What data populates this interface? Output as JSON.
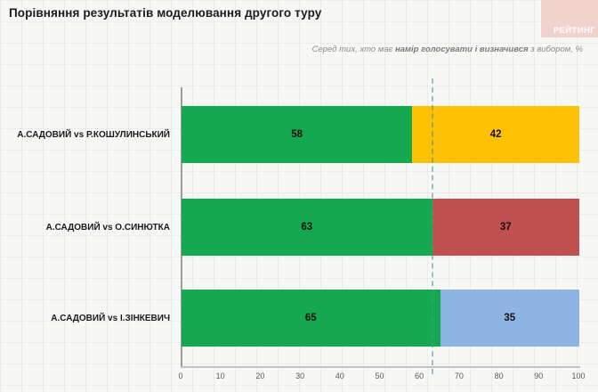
{
  "page": {
    "title": "Порівняння результатів моделювання другого туру"
  },
  "subtitle": {
    "prefix": "Серед тих, хто має ",
    "bold": "намір голосувати і визначився",
    "suffix": " з вибором, %"
  },
  "logo": {
    "text": "РЕЙТИНГ",
    "bg_color": "#f2d2cd",
    "text_color": "#ffffff"
  },
  "colors": {
    "green": "#14a850",
    "yellow": "#fec106",
    "red": "#c0504d",
    "blue": "#8eb4e3",
    "reference_line": "#4e968c"
  },
  "chart_data": {
    "type": "bar",
    "orientation": "horizontal_stacked",
    "title": "Порівняння результатів моделювання другого туру",
    "subtitle": "Серед тих, хто має намір голосувати і визначився з вибором, %",
    "categories": [
      "А.САДОВИЙ vs Р.КОШУЛИНСЬКИЙ",
      "А.САДОВИЙ vs О.СИНЮТКА",
      "А.САДОВИЙ vs І.ЗІНКЕВИЧ"
    ],
    "series": [
      {
        "name": "segment-left",
        "values": [
          58,
          63,
          65
        ],
        "colors": [
          "#14a850",
          "#14a850",
          "#14a850"
        ]
      },
      {
        "name": "segment-right",
        "values": [
          42,
          37,
          35
        ],
        "colors": [
          "#fec106",
          "#c0504d",
          "#8eb4e3"
        ]
      }
    ],
    "xlim": [
      0,
      100
    ],
    "x_ticks": [
      0,
      10,
      20,
      30,
      40,
      50,
      60,
      70,
      80,
      90,
      100
    ],
    "reference_line_x": 63,
    "grid": true,
    "legend": "none"
  }
}
